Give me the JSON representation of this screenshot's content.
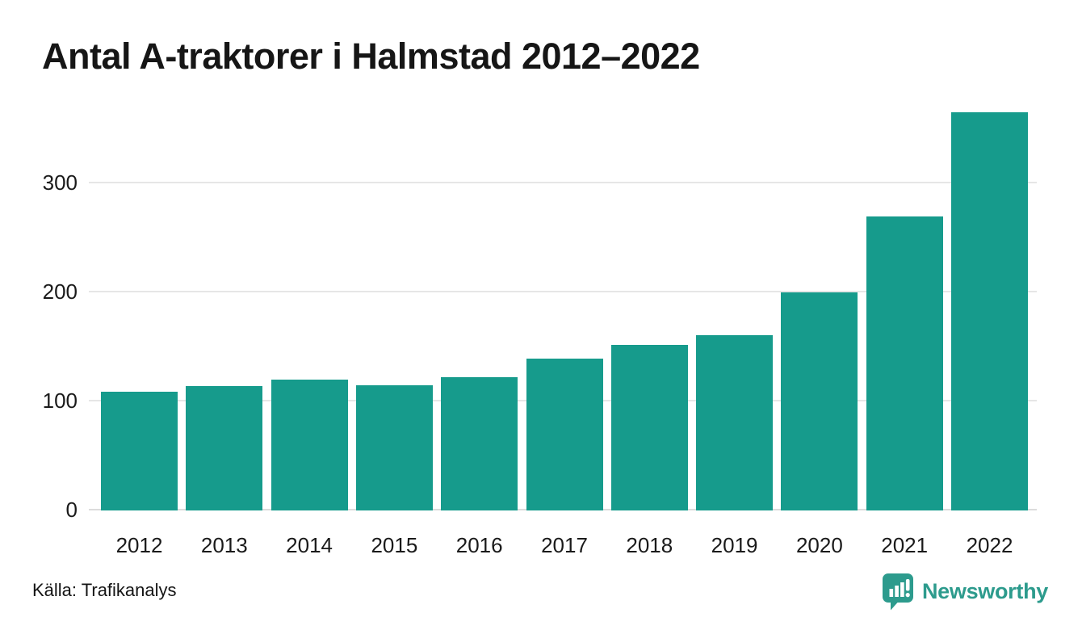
{
  "title": "Antal A-traktorer i Halmstad 2012–2022",
  "source": "Källa: Trafikanalys",
  "brand": {
    "name": "Newsworthy",
    "color": "#2d9b8d"
  },
  "colors": {
    "bar": "#169b8c",
    "grid": "#e6e6e6",
    "axis_text": "#1a1a1a",
    "title_text": "#161616",
    "background": "#ffffff"
  },
  "chart_data": {
    "type": "bar",
    "title": "Antal A-traktorer i Halmstad 2012–2022",
    "categories": [
      "2012",
      "2013",
      "2014",
      "2015",
      "2016",
      "2017",
      "2018",
      "2019",
      "2020",
      "2021",
      "2022"
    ],
    "values": [
      109,
      114,
      120,
      115,
      122,
      139,
      152,
      161,
      200,
      270,
      365
    ],
    "xlabel": "",
    "ylabel": "",
    "ylim": [
      0,
      372
    ],
    "yticks": [
      0,
      100,
      200,
      300
    ],
    "grid": true,
    "legend": false,
    "bar_color": "#169b8c",
    "source": "Källa: Trafikanalys"
  }
}
